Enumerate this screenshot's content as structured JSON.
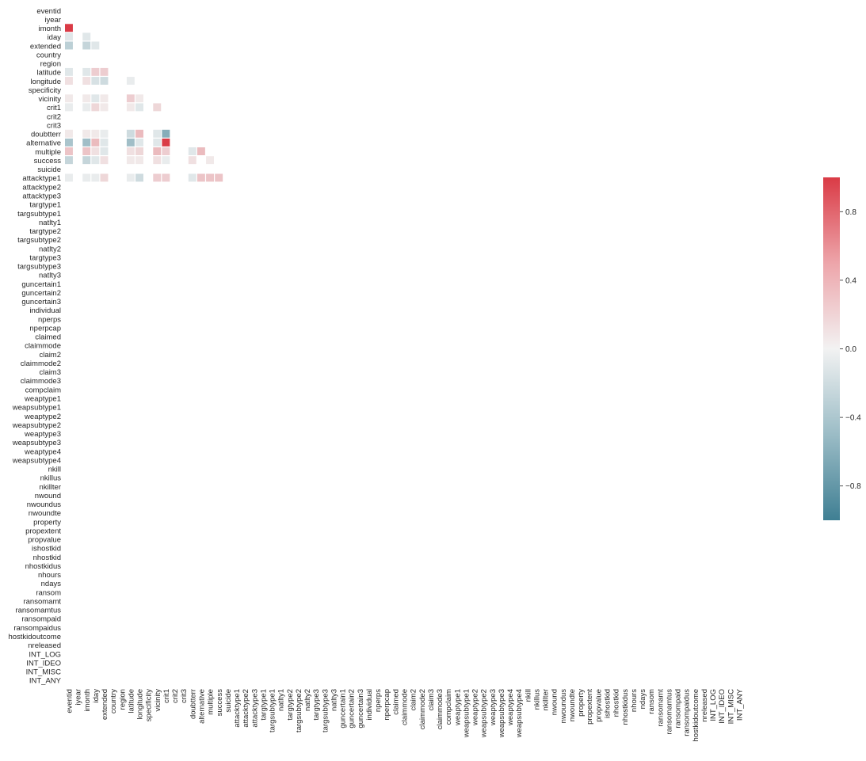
{
  "chart_data": {
    "type": "heatmap",
    "title": "",
    "xlabel": "",
    "ylabel": "",
    "variables": [
      "eventid",
      "iyear",
      "imonth",
      "iday",
      "extended",
      "country",
      "region",
      "latitude",
      "longitude",
      "specificity",
      "vicinity",
      "crit1",
      "crit2",
      "crit3",
      "doubtterr",
      "alternative",
      "multiple",
      "success",
      "suicide",
      "attacktype1",
      "attacktype2",
      "attacktype3",
      "targtype1",
      "targsubtype1",
      "natlty1",
      "targtype2",
      "targsubtype2",
      "natlty2",
      "targtype3",
      "targsubtype3",
      "natlty3",
      "guncertain1",
      "guncertain2",
      "guncertain3",
      "individual",
      "nperps",
      "nperpcap",
      "claimed",
      "claimmode",
      "claim2",
      "claimmode2",
      "claim3",
      "claimmode3",
      "compclaim",
      "weaptype1",
      "weapsubtype1",
      "weaptype2",
      "weapsubtype2",
      "weaptype3",
      "weapsubtype3",
      "weaptype4",
      "weapsubtype4",
      "nkill",
      "nkillus",
      "nkillter",
      "nwound",
      "nwoundus",
      "nwoundte",
      "property",
      "propextent",
      "propvalue",
      "ishostkid",
      "nhostkid",
      "nhostkidus",
      "nhours",
      "ndays",
      "ransom",
      "ransomamt",
      "ransomamtus",
      "ransompaid",
      "ransompaidus",
      "hostkidoutcome",
      "nreleased",
      "INT_LOG",
      "INT_IDEO",
      "INT_MISC",
      "INT_ANY"
    ],
    "mask": "upper-triangle-and-diagonal",
    "colormap": "diverging blue-white-red",
    "color_low": "#3f7f93",
    "color_mid": "#f2f2f2",
    "color_high": "#da3b46",
    "vmin": -1,
    "vmax": 1,
    "colorbar_ticks": [
      "−0.8",
      "−0.4",
      "0.0",
      "0.4",
      "0.8"
    ],
    "colorbar_tick_values": [
      -0.8,
      -0.4,
      0.0,
      0.4,
      0.8
    ],
    "lower_triangle_values": {
      "imonth": {
        "eventid": 1.0
      },
      "iday": {
        "eventid": -0.1,
        "imonth": -0.1
      },
      "extended": {
        "eventid": -0.3,
        "imonth": -0.25,
        "iday": -0.1
      },
      "latitude": {
        "eventid": -0.1,
        "imonth": -0.1,
        "iday": 0.2,
        "extended": 0.2
      },
      "longitude": {
        "eventid": 0.1,
        "imonth": 0.1,
        "iday": -0.15,
        "extended": -0.2,
        "latitude": -0.05
      },
      "vicinity": {
        "eventid": 0.05,
        "imonth": 0.05,
        "iday": -0.1,
        "extended": 0.05,
        "latitude": 0.2,
        "longitude": 0.05
      },
      "crit1": {
        "eventid": -0.05,
        "imonth": -0.05,
        "iday": 0.15,
        "extended": 0.05,
        "latitude": 0.05,
        "longitude": -0.1,
        "vicinity": 0.15
      },
      "doubtterr": {
        "eventid": 0.05,
        "imonth": 0.05,
        "iday": 0.05,
        "extended": -0.05,
        "latitude": -0.2,
        "longitude": 0.3,
        "vicinity": -0.1,
        "crit1": -0.6
      },
      "alternative": {
        "eventid": -0.4,
        "imonth": -0.45,
        "iday": 0.3,
        "extended": -0.1,
        "latitude": -0.45,
        "longitude": -0.1,
        "vicinity": -0.1,
        "crit1": 1.0
      },
      "multiple": {
        "eventid": 0.25,
        "imonth": 0.25,
        "iday": 0.1,
        "extended": -0.1,
        "latitude": 0.1,
        "longitude": 0.15,
        "vicinity": 0.3,
        "crit1": 0.2,
        "doubtterr": -0.1,
        "alternative": 0.3
      },
      "success": {
        "eventid": -0.25,
        "imonth": -0.25,
        "iday": -0.1,
        "extended": 0.1,
        "latitude": 0.05,
        "longitude": 0.05,
        "vicinity": 0.1,
        "crit1": -0.05,
        "doubtterr": 0.1,
        "multiple": 0.05
      },
      "attacktype1": {
        "eventid": -0.05,
        "imonth": -0.05,
        "iday": -0.05,
        "extended": 0.15,
        "latitude": -0.05,
        "longitude": -0.2,
        "vicinity": 0.2,
        "crit1": 0.2,
        "doubtterr": -0.1,
        "alternative": 0.25,
        "multiple": 0.25,
        "success": 0.25
      }
    }
  }
}
